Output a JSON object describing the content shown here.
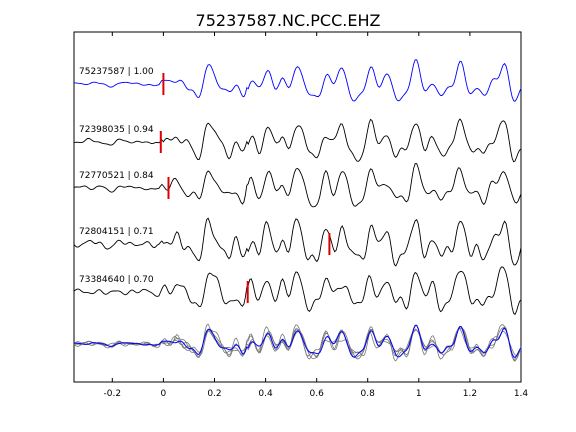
{
  "chart_data": {
    "type": "line",
    "title": "75237587.NC.PCC.EHZ",
    "xlabel": "",
    "ylabel": "",
    "xlim": [
      -0.35,
      1.4
    ],
    "x_ticks": [
      -0.2,
      0,
      0.2,
      0.4,
      0.6,
      0.8,
      1,
      1.2,
      1.4
    ],
    "x_tick_labels": [
      "-0.2",
      "0",
      "0.2",
      "0.4",
      "0.6",
      "0.8",
      "1",
      "1.2",
      "1.4"
    ],
    "grid": false,
    "colors": {
      "reference": "#0000ff",
      "trace": "#000000",
      "stack_trace": "#777777",
      "pick": "#dd0000"
    },
    "traces": [
      {
        "label": "75237587 | 1.00",
        "event_id": "75237587",
        "correlation": 1.0,
        "pick_time": 0.0,
        "color": "#0000ff"
      },
      {
        "label": "72398035 | 0.94",
        "event_id": "72398035",
        "correlation": 0.94,
        "pick_time": -0.01,
        "color": "#000000"
      },
      {
        "label": "72770521 | 0.84",
        "event_id": "72770521",
        "correlation": 0.84,
        "pick_time": 0.02,
        "color": "#000000"
      },
      {
        "label": "72804151 | 0.71",
        "event_id": "72804151",
        "correlation": 0.71,
        "pick_time": 0.65,
        "color": "#000000"
      },
      {
        "label": "73384640 | 0.70",
        "event_id": "73384640",
        "correlation": 0.7,
        "pick_time": 0.33,
        "color": "#000000"
      }
    ],
    "stack": {
      "description": "overlay of all aligned traces, reference in blue, others in gray"
    }
  }
}
